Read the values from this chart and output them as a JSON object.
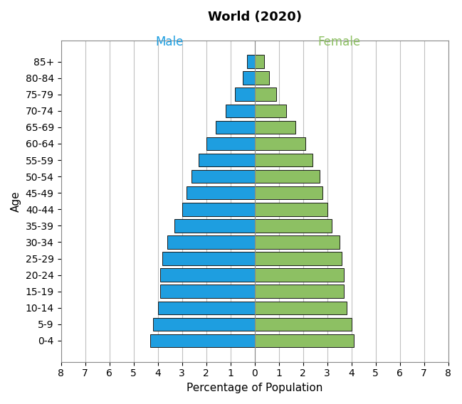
{
  "title": "World (2020)",
  "xlabel": "Percentage of Population",
  "ylabel": "Age",
  "age_groups": [
    "0-4",
    "5-9",
    "10-14",
    "15-19",
    "20-24",
    "25-29",
    "30-34",
    "35-39",
    "40-44",
    "45-49",
    "50-54",
    "55-59",
    "60-64",
    "65-69",
    "70-74",
    "75-79",
    "80-84",
    "85+"
  ],
  "male": [
    4.3,
    4.2,
    4.0,
    3.9,
    3.9,
    3.8,
    3.6,
    3.3,
    3.0,
    2.8,
    2.6,
    2.3,
    2.0,
    1.6,
    1.2,
    0.8,
    0.5,
    0.3
  ],
  "female": [
    4.1,
    4.0,
    3.8,
    3.7,
    3.7,
    3.6,
    3.5,
    3.2,
    3.0,
    2.8,
    2.7,
    2.4,
    2.1,
    1.7,
    1.3,
    0.9,
    0.6,
    0.4
  ],
  "male_color": "#1E9EE0",
  "female_color": "#8DC063",
  "male_label_color": "#1E9EE0",
  "female_label_color": "#8DC063",
  "bar_edge_color": "#1a1a1a",
  "background_color": "#ffffff",
  "xlim": 8,
  "title_fontsize": 13,
  "axis_label_fontsize": 11,
  "tick_fontsize": 10,
  "bar_height": 0.8,
  "grid_color": "#c0c0c0"
}
